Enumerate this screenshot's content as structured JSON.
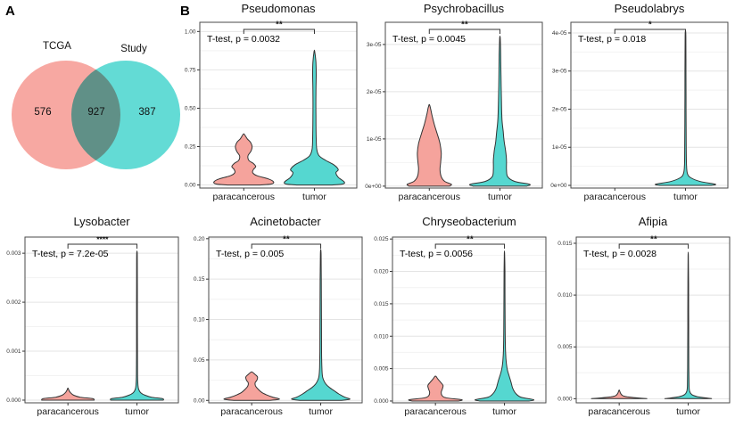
{
  "figure": {
    "panel_a_label": "A",
    "panel_b_label": "B"
  },
  "colors": {
    "paracancerous_fill": "#F5A39C",
    "tumor_fill": "#55D7D0",
    "violin_outline": "#333333",
    "panel_border": "#4a4a4a",
    "grid_major": "#e4e4e4",
    "grid_minor": "#f2f2f2",
    "venn_left": "#F7A8A2",
    "venn_right": "#63DBD5"
  },
  "chart_data": {
    "venn": {
      "type": "venn",
      "left": {
        "label": "TCGA",
        "count": "576",
        "color": "#F7A8A2"
      },
      "right": {
        "label": "Study",
        "count": "387",
        "color": "#63DBD5"
      },
      "overlap": {
        "count": "927"
      }
    },
    "violin_plots": [
      {
        "type": "violin",
        "title": "Pseudomonas",
        "stat_label": "T-test, p = 0.0032",
        "significance": "**",
        "categories": [
          "paracancerous",
          "tumor"
        ],
        "ylim": [
          -0.02,
          1.06
        ],
        "yticks": [
          [
            0,
            "0.00"
          ],
          [
            0.25,
            "0.25"
          ],
          [
            0.5,
            "0.50"
          ],
          [
            0.75,
            "0.75"
          ],
          [
            1.0,
            "1.00"
          ]
        ],
        "violins": [
          {
            "group": "paracancerous",
            "profile": [
              [
                0,
                0.55
              ],
              [
                0.006,
                0.92
              ],
              [
                0.02,
                1.0
              ],
              [
                0.04,
                0.82
              ],
              [
                0.06,
                0.45
              ],
              [
                0.08,
                0.3
              ],
              [
                0.1,
                0.32
              ],
              [
                0.12,
                0.4
              ],
              [
                0.14,
                0.32
              ],
              [
                0.16,
                0.17
              ],
              [
                0.19,
                0.14
              ],
              [
                0.22,
                0.24
              ],
              [
                0.25,
                0.28
              ],
              [
                0.28,
                0.22
              ],
              [
                0.3,
                0.12
              ],
              [
                0.33,
                0.02
              ]
            ]
          },
          {
            "group": "tumor",
            "profile": [
              [
                0,
                0.6
              ],
              [
                0.006,
                0.95
              ],
              [
                0.02,
                1.0
              ],
              [
                0.05,
                0.8
              ],
              [
                0.08,
                0.72
              ],
              [
                0.1,
                0.8
              ],
              [
                0.13,
                0.66
              ],
              [
                0.16,
                0.38
              ],
              [
                0.19,
                0.16
              ],
              [
                0.23,
                0.08
              ],
              [
                0.3,
                0.06
              ],
              [
                0.45,
                0.05
              ],
              [
                0.6,
                0.05
              ],
              [
                0.72,
                0.06
              ],
              [
                0.8,
                0.05
              ],
              [
                0.87,
                0.01
              ]
            ]
          }
        ]
      },
      {
        "type": "violin",
        "title": "Psychrobacillus",
        "stat_label": "T-test, p = 0.0045",
        "significance": "**",
        "categories": [
          "paracancerous",
          "tumor"
        ],
        "ylim": [
          -4e-07,
          3.47e-05
        ],
        "yticks": [
          [
            0,
            "0e+00"
          ],
          [
            1e-05,
            "1e-05"
          ],
          [
            2e-05,
            "2e-05"
          ],
          [
            3e-05,
            "3e-05"
          ]
        ],
        "violins": [
          {
            "group": "paracancerous",
            "profile": [
              [
                0,
                0.68
              ],
              [
                4e-07,
                0.74
              ],
              [
                1e-06,
                0.52
              ],
              [
                2e-06,
                0.4
              ],
              [
                3.5e-06,
                0.36
              ],
              [
                5e-06,
                0.38
              ],
              [
                7e-06,
                0.4
              ],
              [
                9e-06,
                0.36
              ],
              [
                1.1e-05,
                0.27
              ],
              [
                1.3e-05,
                0.17
              ],
              [
                1.5e-05,
                0.09
              ],
              [
                1.65e-05,
                0.04
              ],
              [
                1.72e-05,
                0.01
              ]
            ]
          },
          {
            "group": "tumor",
            "profile": [
              [
                0,
                0.9
              ],
              [
                4e-07,
                1.0
              ],
              [
                1e-06,
                0.5
              ],
              [
                2e-06,
                0.26
              ],
              [
                3.5e-06,
                0.22
              ],
              [
                5.5e-06,
                0.22
              ],
              [
                7.5e-06,
                0.19
              ],
              [
                9.5e-06,
                0.14
              ],
              [
                1.15e-05,
                0.11
              ],
              [
                1.4e-05,
                0.07
              ],
              [
                1.8e-05,
                0.05
              ],
              [
                2.3e-05,
                0.035
              ],
              [
                2.8e-05,
                0.025
              ],
              [
                3.1e-05,
                0.012
              ],
              [
                3.17e-05,
                0.003
              ]
            ]
          }
        ]
      },
      {
        "type": "violin",
        "title": "Pseudolabrys",
        "stat_label": "T-test, p = 0.018",
        "significance": "*",
        "categories": [
          "paracancerous",
          "tumor"
        ],
        "ylim": [
          -7e-07,
          4.28e-05
        ],
        "yticks": [
          [
            0,
            "0e+00"
          ],
          [
            1e-05,
            "1e-05"
          ],
          [
            2e-05,
            "2e-05"
          ],
          [
            3e-05,
            "3e-05"
          ],
          [
            4e-05,
            "4e-05"
          ]
        ],
        "violins": [
          {
            "group": "paracancerous",
            "profile": []
          },
          {
            "group": "tumor",
            "profile": [
              [
                0,
                0.88
              ],
              [
                3e-07,
                1.0
              ],
              [
                1e-06,
                0.5
              ],
              [
                2e-06,
                0.18
              ],
              [
                3e-06,
                0.07
              ],
              [
                5e-06,
                0.035
              ],
              [
                1e-05,
                0.025
              ],
              [
                2e-05,
                0.02
              ],
              [
                3e-05,
                0.016
              ],
              [
                3.9e-05,
                0.012
              ],
              [
                4.05e-05,
                0.003
              ]
            ]
          }
        ]
      },
      {
        "type": "violin",
        "title": "Lysobacter",
        "stat_label": "T-test, p = 7.2e-05",
        "significance": "****",
        "categories": [
          "paracancerous",
          "tumor"
        ],
        "ylim": [
          -5.5e-05,
          0.00333
        ],
        "yticks": [
          [
            0,
            "0.000"
          ],
          [
            0.001,
            "0.001"
          ],
          [
            0.002,
            "0.002"
          ],
          [
            0.003,
            "0.003"
          ]
        ],
        "violins": [
          {
            "group": "paracancerous",
            "profile": [
              [
                0,
                0.9
              ],
              [
                3e-05,
                0.85
              ],
              [
                6e-05,
                0.42
              ],
              [
                0.0001,
                0.2
              ],
              [
                0.00015,
                0.09
              ],
              [
                0.0002,
                0.035
              ],
              [
                0.00024,
                0.01
              ]
            ]
          },
          {
            "group": "tumor",
            "profile": [
              [
                0,
                0.9
              ],
              [
                3e-05,
                0.88
              ],
              [
                6e-05,
                0.5
              ],
              [
                0.0001,
                0.28
              ],
              [
                0.00015,
                0.13
              ],
              [
                0.00022,
                0.06
              ],
              [
                0.0003,
                0.035
              ],
              [
                0.0005,
                0.02
              ],
              [
                0.001,
                0.015
              ],
              [
                0.002,
                0.013
              ],
              [
                0.0029,
                0.011
              ],
              [
                0.00303,
                0.003
              ]
            ]
          }
        ]
      },
      {
        "type": "violin",
        "title": "Acinetobacter",
        "stat_label": "T-test, p = 0.005",
        "significance": "**",
        "categories": [
          "paracancerous",
          "tumor"
        ],
        "ylim": [
          -0.003,
          0.202
        ],
        "yticks": [
          [
            0,
            "0.00"
          ],
          [
            0.05,
            "0.05"
          ],
          [
            0.1,
            "0.10"
          ],
          [
            0.15,
            "0.15"
          ],
          [
            0.2,
            "0.20"
          ]
        ],
        "violins": [
          {
            "group": "paracancerous",
            "profile": [
              [
                0,
                0.6
              ],
              [
                0.0015,
                0.95
              ],
              [
                0.004,
                0.72
              ],
              [
                0.007,
                0.5
              ],
              [
                0.01,
                0.34
              ],
              [
                0.014,
                0.22
              ],
              [
                0.018,
                0.13
              ],
              [
                0.022,
                0.12
              ],
              [
                0.025,
                0.18
              ],
              [
                0.029,
                0.2
              ],
              [
                0.032,
                0.12
              ],
              [
                0.035,
                0.02
              ]
            ]
          },
          {
            "group": "tumor",
            "profile": [
              [
                0,
                0.7
              ],
              [
                0.0015,
                1.0
              ],
              [
                0.004,
                0.82
              ],
              [
                0.008,
                0.62
              ],
              [
                0.012,
                0.46
              ],
              [
                0.016,
                0.3
              ],
              [
                0.02,
                0.18
              ],
              [
                0.025,
                0.1
              ],
              [
                0.03,
                0.06
              ],
              [
                0.04,
                0.04
              ],
              [
                0.06,
                0.03
              ],
              [
                0.1,
                0.025
              ],
              [
                0.15,
                0.02
              ],
              [
                0.18,
                0.012
              ],
              [
                0.186,
                0.003
              ]
            ]
          }
        ]
      },
      {
        "type": "violin",
        "title": "Chryseobacterium",
        "stat_label": "T-test, p = 0.0056",
        "significance": "**",
        "categories": [
          "paracancerous",
          "tumor"
        ],
        "ylim": [
          -0.00028,
          0.0253
        ],
        "yticks": [
          [
            0,
            "0.000"
          ],
          [
            0.005,
            "0.005"
          ],
          [
            0.01,
            "0.010"
          ],
          [
            0.015,
            "0.015"
          ],
          [
            0.02,
            "0.020"
          ],
          [
            0.025,
            "0.025"
          ]
        ],
        "violins": [
          {
            "group": "paracancerous",
            "profile": [
              [
                0,
                0.8
              ],
              [
                0.0002,
                0.9
              ],
              [
                0.0005,
                0.36
              ],
              [
                0.0009,
                0.22
              ],
              [
                0.0014,
                0.2
              ],
              [
                0.0019,
                0.24
              ],
              [
                0.0024,
                0.26
              ],
              [
                0.0029,
                0.18
              ],
              [
                0.0034,
                0.08
              ],
              [
                0.0038,
                0.02
              ]
            ]
          },
          {
            "group": "tumor",
            "profile": [
              [
                0,
                0.85
              ],
              [
                0.0002,
                1.0
              ],
              [
                0.0006,
                0.56
              ],
              [
                0.0012,
                0.38
              ],
              [
                0.002,
                0.28
              ],
              [
                0.003,
                0.22
              ],
              [
                0.004,
                0.15
              ],
              [
                0.005,
                0.09
              ],
              [
                0.0065,
                0.05
              ],
              [
                0.009,
                0.028
              ],
              [
                0.014,
                0.02
              ],
              [
                0.02,
                0.015
              ],
              [
                0.0228,
                0.004
              ]
            ]
          }
        ]
      },
      {
        "type": "violin",
        "title": "Afipia",
        "stat_label": "T-test, p = 0.0028",
        "significance": "**",
        "categories": [
          "paracancerous",
          "tumor"
        ],
        "ylim": [
          -0.0004,
          0.0156
        ],
        "yticks": [
          [
            0,
            "0.000"
          ],
          [
            0.005,
            "0.005"
          ],
          [
            0.01,
            "0.010"
          ],
          [
            0.015,
            "0.015"
          ]
        ],
        "violins": [
          {
            "group": "paracancerous",
            "profile": [
              [
                0,
                0.95
              ],
              [
                8e-05,
                0.6
              ],
              [
                0.00018,
                0.28
              ],
              [
                0.0003,
                0.12
              ],
              [
                0.0005,
                0.05
              ],
              [
                0.0008,
                0.01
              ]
            ]
          },
          {
            "group": "tumor",
            "profile": [
              [
                0,
                0.8
              ],
              [
                0.0001,
                0.55
              ],
              [
                0.0002,
                0.3
              ],
              [
                0.0004,
                0.12
              ],
              [
                0.0007,
                0.05
              ],
              [
                0.0012,
                0.03
              ],
              [
                0.003,
                0.02
              ],
              [
                0.007,
                0.015
              ],
              [
                0.011,
                0.012
              ],
              [
                0.0138,
                0.004
              ]
            ]
          }
        ]
      }
    ]
  }
}
